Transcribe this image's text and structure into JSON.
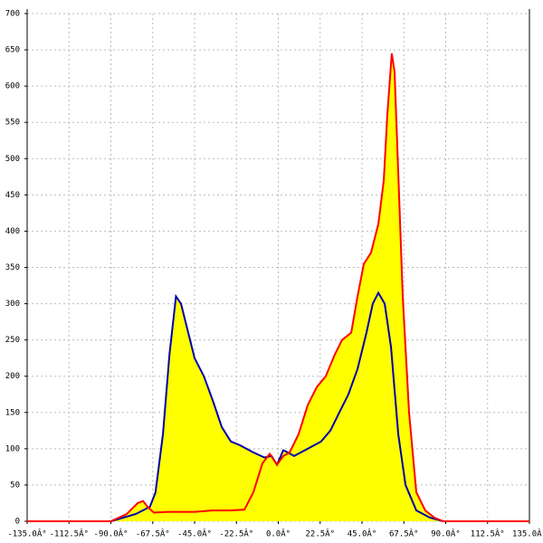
{
  "chart_data": {
    "type": "area",
    "fill_color": "#ffff00",
    "grid": true,
    "xlim": [
      -135,
      135
    ],
    "ylim": [
      0,
      700
    ],
    "yticks": [
      0,
      50,
      100,
      150,
      200,
      250,
      300,
      350,
      400,
      450,
      500,
      550,
      600,
      650,
      700
    ],
    "xticks": [
      {
        "value": -135,
        "label": "-135.0Â°"
      },
      {
        "value": -112.5,
        "label": "-112.5Â°"
      },
      {
        "value": -90,
        "label": "-90.0Â°"
      },
      {
        "value": -67.5,
        "label": "-67.5Â°"
      },
      {
        "value": -45,
        "label": "-45.0Â°"
      },
      {
        "value": -22.5,
        "label": "-22.5Â°"
      },
      {
        "value": 0,
        "label": "0.0Â°"
      },
      {
        "value": 22.5,
        "label": "22.5Â°"
      },
      {
        "value": 45,
        "label": "45.0Â°"
      },
      {
        "value": 67.5,
        "label": "67.5Â°"
      },
      {
        "value": 90,
        "label": "90.0Â°"
      },
      {
        "value": 112.5,
        "label": "112.5Â°"
      },
      {
        "value": 135,
        "label": "135.0Â°"
      }
    ],
    "series": [
      {
        "color": "#0000aa",
        "x": [
          -90,
          -76.6,
          -69,
          -66,
          -62,
          -58.5,
          -55,
          -52.3,
          -48.4,
          -45,
          -40,
          -35,
          -30.4,
          -25.5,
          -20.7,
          -13.4,
          -7.5,
          -3.6,
          -0.7,
          2.7,
          5.1,
          8.5,
          15.8,
          23,
          28,
          32.8,
          37.7,
          42.6,
          47.4,
          50.8,
          53.8,
          57.2,
          60.6,
          64.5,
          68.4,
          74.2,
          81.5,
          88.8
        ],
        "values": [
          0,
          10,
          20,
          40,
          120,
          230,
          310,
          300,
          260,
          225,
          200,
          165,
          130,
          110,
          105,
          95,
          88,
          90,
          78,
          98,
          95,
          90,
          100,
          110,
          125,
          150,
          175,
          210,
          260,
          300,
          315,
          300,
          240,
          120,
          50,
          15,
          5,
          0
        ]
      },
      {
        "color": "#ff0000",
        "x": [
          -135,
          -90,
          -81.5,
          -75.6,
          -72.7,
          -70.3,
          -66.9,
          -59.6,
          -52.3,
          -45,
          -35.3,
          -25.5,
          -18.2,
          -13.4,
          -8.5,
          -4.6,
          -0.7,
          2.7,
          6.1,
          10.9,
          15.8,
          20.7,
          25.5,
          30.4,
          34.3,
          39.2,
          42.6,
          46,
          49.8,
          53.8,
          56.7,
          58.6,
          61,
          62.5,
          64.5,
          66.9,
          70.3,
          74.2,
          79,
          83.9,
          88.8,
          135
        ],
        "values": [
          0,
          0,
          10,
          25,
          28,
          20,
          12,
          13,
          13,
          13,
          15,
          15,
          16,
          40,
          80,
          93,
          78,
          90,
          95,
          120,
          160,
          185,
          200,
          230,
          250,
          260,
          310,
          355,
          370,
          410,
          470,
          560,
          645,
          620,
          480,
          310,
          150,
          40,
          15,
          5,
          0,
          0
        ]
      }
    ]
  }
}
